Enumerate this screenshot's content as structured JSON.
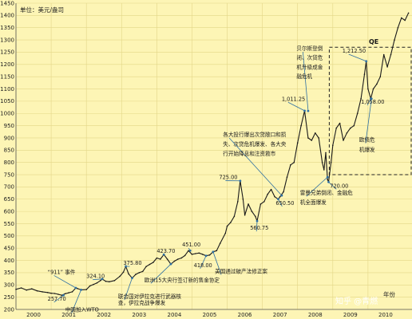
{
  "chart_data": {
    "type": "line",
    "unit_label": "单位：美元/盎司",
    "xlabel": "年份",
    "ylim": [
      200,
      1450
    ],
    "xlim": [
      2000,
      2011.25
    ],
    "y_ticks": [
      "200",
      "250",
      "300",
      "350",
      "400",
      "450",
      "500",
      "550",
      "600",
      "650",
      "700",
      "750",
      "800",
      "850",
      "900",
      "950",
      "1000",
      "1050",
      "1100",
      "1150",
      "1200",
      "1250",
      "1300",
      "1350",
      "1400",
      "1450"
    ],
    "x_ticks": [
      "2000",
      "2001",
      "2002",
      "2003",
      "2004",
      "2005",
      "2006",
      "2007",
      "2008",
      "2009",
      "2010"
    ],
    "series": [
      {
        "color": "#1a1a1a",
        "points": [
          [
            2000.0,
            282
          ],
          [
            2000.15,
            288
          ],
          [
            2000.3,
            279
          ],
          [
            2000.45,
            284
          ],
          [
            2000.6,
            276
          ],
          [
            2000.75,
            272
          ],
          [
            2000.9,
            269
          ],
          [
            2001.0,
            266
          ],
          [
            2001.1,
            265
          ],
          [
            2001.2,
            262
          ],
          [
            2001.3,
            258
          ],
          [
            2001.4,
            264
          ],
          [
            2001.5,
            268
          ],
          [
            2001.6,
            272
          ],
          [
            2001.7,
            288
          ],
          [
            2001.75,
            285
          ],
          [
            2001.85,
            280
          ],
          [
            2002.0,
            281
          ],
          [
            2002.1,
            296
          ],
          [
            2002.2,
            302
          ],
          [
            2002.3,
            308
          ],
          [
            2002.4,
            318
          ],
          [
            2002.45,
            324
          ],
          [
            2002.55,
            315
          ],
          [
            2002.65,
            313
          ],
          [
            2002.8,
            318
          ],
          [
            2002.95,
            335
          ],
          [
            2003.05,
            352
          ],
          [
            2003.12,
            375
          ],
          [
            2003.2,
            345
          ],
          [
            2003.3,
            328
          ],
          [
            2003.4,
            343
          ],
          [
            2003.5,
            350
          ],
          [
            2003.6,
            355
          ],
          [
            2003.7,
            375
          ],
          [
            2003.8,
            384
          ],
          [
            2003.9,
            392
          ],
          [
            2004.0,
            410
          ],
          [
            2004.1,
            405
          ],
          [
            2004.2,
            424
          ],
          [
            2004.3,
            405
          ],
          [
            2004.4,
            385
          ],
          [
            2004.5,
            397
          ],
          [
            2004.6,
            405
          ],
          [
            2004.7,
            410
          ],
          [
            2004.8,
            420
          ],
          [
            2004.9,
            440
          ],
          [
            2005.0,
            425
          ],
          [
            2005.1,
            428
          ],
          [
            2005.2,
            430
          ],
          [
            2005.3,
            425
          ],
          [
            2005.4,
            419
          ],
          [
            2005.5,
            422
          ],
          [
            2005.6,
            435
          ],
          [
            2005.7,
            440
          ],
          [
            2005.8,
            470
          ],
          [
            2005.95,
            511
          ],
          [
            2006.0,
            540
          ],
          [
            2006.1,
            555
          ],
          [
            2006.2,
            580
          ],
          [
            2006.3,
            640
          ],
          [
            2006.37,
            725
          ],
          [
            2006.45,
            650
          ],
          [
            2006.5,
            585
          ],
          [
            2006.6,
            630
          ],
          [
            2006.7,
            600
          ],
          [
            2006.8,
            580
          ],
          [
            2006.85,
            561
          ],
          [
            2006.95,
            630
          ],
          [
            2007.05,
            640
          ],
          [
            2007.15,
            670
          ],
          [
            2007.25,
            690
          ],
          [
            2007.35,
            660
          ],
          [
            2007.45,
            650
          ],
          [
            2007.5,
            660
          ],
          [
            2007.6,
            680
          ],
          [
            2007.7,
            740
          ],
          [
            2007.8,
            790
          ],
          [
            2007.9,
            800
          ],
          [
            2008.0,
            880
          ],
          [
            2008.1,
            950
          ],
          [
            2008.2,
            1011
          ],
          [
            2008.3,
            900
          ],
          [
            2008.4,
            890
          ],
          [
            2008.5,
            920
          ],
          [
            2008.6,
            900
          ],
          [
            2008.7,
            800
          ],
          [
            2008.75,
            770
          ],
          [
            2008.8,
            840
          ],
          [
            2008.85,
            730
          ],
          [
            2008.88,
            720
          ],
          [
            2008.95,
            800
          ],
          [
            2009.0,
            870
          ],
          [
            2009.1,
            940
          ],
          [
            2009.2,
            960
          ],
          [
            2009.3,
            890
          ],
          [
            2009.4,
            920
          ],
          [
            2009.5,
            940
          ],
          [
            2009.6,
            950
          ],
          [
            2009.7,
            1000
          ],
          [
            2009.8,
            1060
          ],
          [
            2009.9,
            1160
          ],
          [
            2009.95,
            1213
          ],
          [
            2010.0,
            1100
          ],
          [
            2010.08,
            1060
          ],
          [
            2010.15,
            1100
          ],
          [
            2010.25,
            1120
          ],
          [
            2010.35,
            1150
          ],
          [
            2010.45,
            1240
          ],
          [
            2010.55,
            1190
          ],
          [
            2010.65,
            1240
          ],
          [
            2010.75,
            1300
          ],
          [
            2010.85,
            1350
          ],
          [
            2010.95,
            1390
          ],
          [
            2011.05,
            1380
          ],
          [
            2011.15,
            1410
          ]
        ]
      }
    ],
    "annotations": [
      {
        "text": "“911” 事件",
        "x": 2001.7,
        "y": 288,
        "label_x": 2000.9,
        "label_y": 345
      },
      {
        "text": "257.70",
        "x": 2001.35,
        "y": 258,
        "label_x": 2000.9,
        "label_y": 236
      },
      {
        "text": "中国加入WTO",
        "x": 2001.85,
        "y": 280,
        "label_x": 2001.4,
        "label_y": 192
      },
      {
        "text": "324.10",
        "x": 2002.45,
        "y": 324,
        "label_x": 2002.0,
        "label_y": 328
      },
      {
        "text": "375.80",
        "x": 2003.12,
        "y": 376,
        "label_x": 2003.05,
        "label_y": 382
      },
      {
        "text": "联合国对伊拉克进行武器核",
        "x": 2003.3,
        "y": 328,
        "label_x": 2002.9,
        "label_y": 245
      },
      {
        "text": "查，伊拉克战争爆发",
        "x": null,
        "y": null,
        "label_x": 2002.9,
        "label_y": 219
      },
      {
        "text": "423.70",
        "x": 2004.2,
        "y": 424,
        "label_x": 2004.0,
        "label_y": 431
      },
      {
        "text": "欧洲15大央行签订新的售金协定",
        "x": 2004.4,
        "y": 385,
        "label_x": 2003.65,
        "label_y": 313
      },
      {
        "text": "451.00",
        "x": 2004.95,
        "y": 440,
        "label_x": 2004.72,
        "label_y": 457
      },
      {
        "text": "418.00",
        "x": 2005.4,
        "y": 419,
        "label_x": 2005.05,
        "label_y": 373
      },
      {
        "text": "美国通过破产法修正案",
        "x": 2005.6,
        "y": 435,
        "label_x": 2005.65,
        "label_y": 348
      },
      {
        "text": "725.00",
        "x": 2006.37,
        "y": 725,
        "label_x": 2005.77,
        "label_y": 732
      },
      {
        "text": "560.75",
        "x": 2006.85,
        "y": 561,
        "label_x": 2006.65,
        "label_y": 525
      },
      {
        "text": "650.50",
        "x": 2007.45,
        "y": 650,
        "label_x": 2007.38,
        "label_y": 627
      },
      {
        "text": "各大投行爆出次贷敞口和损",
        "x": 2007.55,
        "y": 665,
        "label_x": 2005.88,
        "label_y": 906
      },
      {
        "text": "失、次贷危机爆发、各大央",
        "x": null,
        "y": null,
        "label_x": 2005.88,
        "label_y": 867
      },
      {
        "text": "行开始降息和注资救市",
        "x": null,
        "y": null,
        "label_x": 2005.88,
        "label_y": 828
      },
      {
        "text": "1,011.25",
        "x": 2008.2,
        "y": 1011,
        "label_x": 2007.55,
        "label_y": 1052
      },
      {
        "text": "贝尔斯登倒",
        "x": 2008.3,
        "y": 1010,
        "label_x": 2007.97,
        "label_y": 1258
      },
      {
        "text": "闭、次贷危",
        "x": null,
        "y": null,
        "label_x": 2007.97,
        "label_y": 1220
      },
      {
        "text": "机升级成金",
        "x": null,
        "y": null,
        "label_x": 2007.97,
        "label_y": 1182
      },
      {
        "text": "融危机",
        "x": null,
        "y": null,
        "label_x": 2007.97,
        "label_y": 1144
      },
      {
        "text": "720.00",
        "x": 2008.88,
        "y": 720,
        "label_x": 2008.92,
        "label_y": 697
      },
      {
        "text": "雷曼兄弟倒闭、金融危",
        "x": 2008.85,
        "y": 740,
        "label_x": 2008.07,
        "label_y": 668
      },
      {
        "text": "机全面爆发",
        "x": null,
        "y": null,
        "label_x": 2008.07,
        "label_y": 630
      },
      {
        "text": "1,212.50",
        "x": 2009.95,
        "y": 1213,
        "label_x": 2009.27,
        "label_y": 1248
      },
      {
        "text": "1,058.00",
        "x": 2010.08,
        "y": 1060,
        "label_x": 2009.8,
        "label_y": 1040
      },
      {
        "text": "欧债危",
        "x": 2010.1,
        "y": 1060,
        "label_x": 2009.75,
        "label_y": 885
      },
      {
        "text": "机爆发",
        "x": null,
        "y": null,
        "label_x": 2009.75,
        "label_y": 845
      }
    ],
    "qe_label": "QE",
    "qe_box": {
      "x0": 2008.9,
      "x1": 2011.25,
      "y0": 750,
      "y1": 1270
    },
    "watermark": "知乎 @青燃"
  }
}
